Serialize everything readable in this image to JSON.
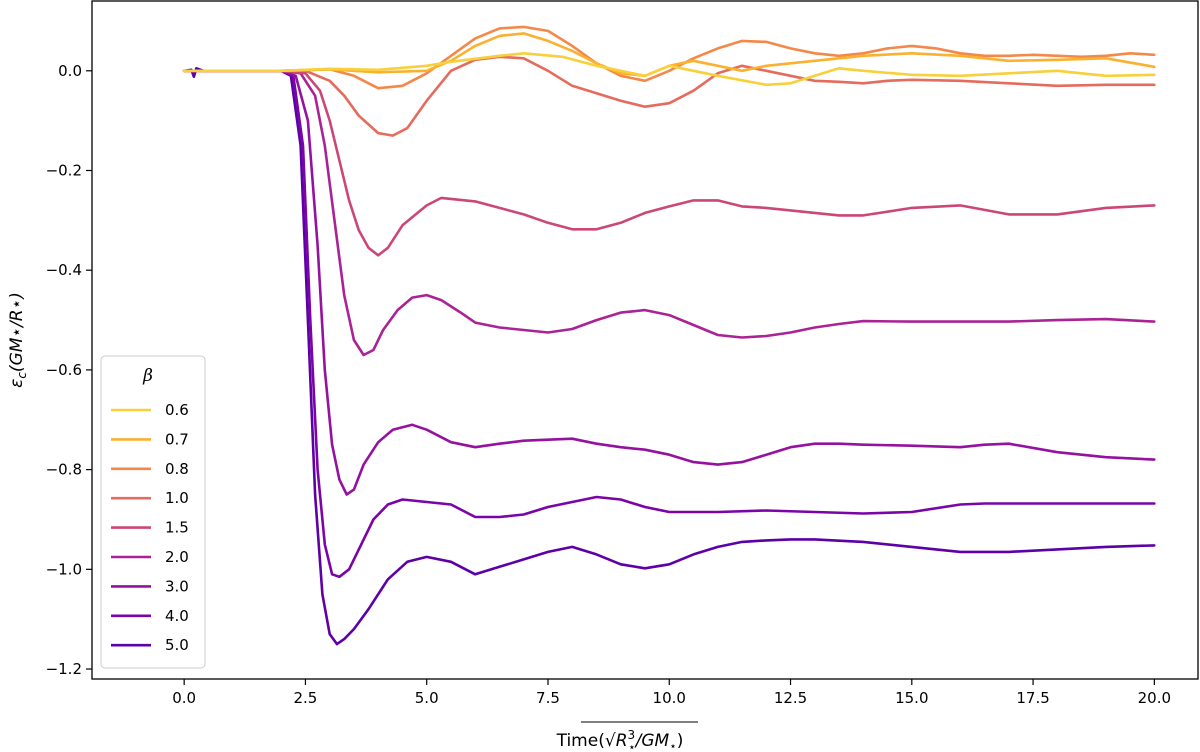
{
  "chart_data": {
    "type": "line",
    "title": "",
    "xlabel": "Time(√R⋆³/GM⋆)",
    "xlabel_parts": {
      "prefix": "Time(",
      "r": "R",
      "star": "⋆",
      "cube": "3",
      "slash": "/GM",
      "close": ")"
    },
    "ylabel": "εc(GM⋆/R⋆)",
    "ylabel_parts": {
      "eps": "ε",
      "sub": "c",
      "rest": "(GM⋆/R⋆)"
    },
    "xlim": [
      -1.9,
      20.9
    ],
    "ylim": [
      -1.22,
      0.14
    ],
    "grid": false,
    "xticks": [
      0.0,
      2.5,
      5.0,
      7.5,
      10.0,
      12.5,
      15.0,
      17.5,
      20.0
    ],
    "xtick_labels": [
      "0.0",
      "2.5",
      "5.0",
      "7.5",
      "10.0",
      "12.5",
      "15.0",
      "17.5",
      "20.0"
    ],
    "yticks": [
      0.0,
      -0.2,
      -0.4,
      -0.6,
      -0.8,
      -1.0,
      -1.2
    ],
    "ytick_labels": [
      "0.0",
      "−0.2",
      "−0.4",
      "−0.6",
      "−0.8",
      "−1.0",
      "−1.2"
    ],
    "legend": {
      "title": "β",
      "position": "lower-left"
    },
    "series": [
      {
        "name": "0.6",
        "color": "#f7d03c",
        "x": [
          0,
          2,
          3,
          4,
          5,
          5.5,
          6.5,
          7,
          7.8,
          8.5,
          9.5,
          10,
          10.5,
          11,
          12,
          12.5,
          13,
          13.5,
          14,
          15,
          16,
          17,
          18,
          19,
          20
        ],
        "y": [
          0,
          0,
          0.004,
          0.002,
          0.01,
          0.018,
          0.03,
          0.035,
          0.028,
          0.01,
          -0.01,
          0.01,
          0.0,
          -0.01,
          -0.028,
          -0.025,
          -0.01,
          0.005,
          0.0,
          -0.008,
          -0.01,
          -0.005,
          0.0,
          -0.01,
          -0.008
        ]
      },
      {
        "name": "0.7",
        "color": "#fbb130",
        "x": [
          0,
          2,
          3,
          4,
          5,
          5.5,
          6,
          6.5,
          7,
          7.5,
          8,
          8.5,
          9,
          9.5,
          10,
          10.5,
          11,
          11.5,
          12,
          12.5,
          13,
          13.5,
          14,
          15,
          16,
          17,
          18,
          19,
          20
        ],
        "y": [
          0,
          0,
          0.003,
          -0.003,
          0.0,
          0.02,
          0.05,
          0.07,
          0.075,
          0.06,
          0.04,
          0.015,
          -0.005,
          -0.01,
          0.01,
          0.02,
          0.01,
          0.0,
          0.01,
          0.015,
          0.02,
          0.025,
          0.03,
          0.035,
          0.03,
          0.02,
          0.022,
          0.025,
          0.008
        ]
      },
      {
        "name": "0.8",
        "color": "#f48849",
        "x": [
          0,
          2,
          3,
          3.5,
          4,
          4.5,
          5,
          5.5,
          6,
          6.5,
          7,
          7.5,
          8,
          8.5,
          9,
          9.5,
          10,
          10.5,
          11,
          11.5,
          12,
          12.5,
          13,
          13.5,
          14,
          14.5,
          15,
          15.5,
          16,
          16.5,
          17,
          17.5,
          18,
          18.5,
          19,
          19.5,
          20
        ],
        "y": [
          0,
          0,
          0.003,
          -0.01,
          -0.035,
          -0.03,
          -0.005,
          0.03,
          0.065,
          0.085,
          0.088,
          0.08,
          0.05,
          0.015,
          -0.01,
          -0.02,
          0.0,
          0.025,
          0.045,
          0.06,
          0.058,
          0.045,
          0.035,
          0.03,
          0.035,
          0.045,
          0.05,
          0.045,
          0.035,
          0.03,
          0.03,
          0.032,
          0.03,
          0.028,
          0.03,
          0.035,
          0.032
        ]
      },
      {
        "name": "1.0",
        "color": "#e56b5d",
        "x": [
          0,
          2,
          2.5,
          3,
          3.3,
          3.6,
          4,
          4.3,
          4.6,
          5,
          5.5,
          6,
          6.5,
          7,
          7.5,
          8,
          8.5,
          9,
          9.5,
          10,
          10.5,
          11,
          11.5,
          12,
          12.5,
          13,
          13.5,
          14,
          14.5,
          15,
          16,
          17,
          18,
          19,
          20
        ],
        "y": [
          0,
          0,
          0.0,
          -0.02,
          -0.05,
          -0.09,
          -0.125,
          -0.13,
          -0.115,
          -0.06,
          0.0,
          0.022,
          0.028,
          0.025,
          0.0,
          -0.03,
          -0.045,
          -0.06,
          -0.072,
          -0.065,
          -0.04,
          -0.005,
          0.01,
          0.0,
          -0.01,
          -0.02,
          -0.022,
          -0.025,
          -0.02,
          -0.018,
          -0.02,
          -0.025,
          -0.03,
          -0.028,
          -0.028
        ]
      },
      {
        "name": "1.5",
        "color": "#cb4778",
        "x": [
          0,
          2,
          2.5,
          2.8,
          3,
          3.2,
          3.4,
          3.6,
          3.8,
          4,
          4.2,
          4.5,
          5,
          5.3,
          5.6,
          6,
          6.5,
          7,
          7.5,
          8,
          8.5,
          9,
          9.5,
          10,
          10.5,
          11,
          11.5,
          12,
          12.5,
          13,
          13.5,
          14,
          15,
          16,
          17,
          18,
          19,
          20
        ],
        "y": [
          0,
          0,
          -0.005,
          -0.04,
          -0.1,
          -0.18,
          -0.26,
          -0.32,
          -0.355,
          -0.37,
          -0.355,
          -0.31,
          -0.27,
          -0.255,
          -0.258,
          -0.262,
          -0.275,
          -0.288,
          -0.305,
          -0.318,
          -0.318,
          -0.305,
          -0.285,
          -0.272,
          -0.26,
          -0.26,
          -0.272,
          -0.275,
          -0.28,
          -0.285,
          -0.29,
          -0.29,
          -0.275,
          -0.27,
          -0.288,
          -0.288,
          -0.275,
          -0.27
        ]
      },
      {
        "name": "2.0",
        "color": "#aa2395",
        "x": [
          0,
          2,
          2.4,
          2.7,
          2.9,
          3.1,
          3.3,
          3.5,
          3.7,
          3.9,
          4.1,
          4.4,
          4.7,
          5,
          5.3,
          5.7,
          6,
          6.5,
          7,
          7.5,
          8,
          8.5,
          9,
          9.5,
          10,
          10.5,
          11,
          11.5,
          12,
          12.5,
          13,
          13.5,
          14,
          15,
          16,
          17,
          18,
          19,
          20
        ],
        "y": [
          0,
          0,
          -0.005,
          -0.05,
          -0.15,
          -0.3,
          -0.45,
          -0.54,
          -0.57,
          -0.56,
          -0.52,
          -0.48,
          -0.455,
          -0.45,
          -0.46,
          -0.485,
          -0.505,
          -0.515,
          -0.52,
          -0.525,
          -0.518,
          -0.5,
          -0.485,
          -0.48,
          -0.49,
          -0.51,
          -0.53,
          -0.535,
          -0.532,
          -0.525,
          -0.515,
          -0.508,
          -0.502,
          -0.503,
          -0.503,
          -0.503,
          -0.5,
          -0.498,
          -0.503
        ]
      },
      {
        "name": "3.0",
        "color": "#9512a0",
        "x": [
          0,
          2,
          2.3,
          2.55,
          2.75,
          2.9,
          3.05,
          3.2,
          3.35,
          3.5,
          3.7,
          4,
          4.3,
          4.7,
          5,
          5.5,
          6,
          6.5,
          7,
          7.5,
          8,
          8.5,
          9,
          9.5,
          10,
          10.5,
          11,
          11.5,
          12,
          12.5,
          13,
          13.5,
          14,
          15,
          16,
          16.5,
          17,
          18,
          19,
          20
        ],
        "y": [
          0,
          0,
          -0.01,
          -0.1,
          -0.35,
          -0.6,
          -0.75,
          -0.82,
          -0.85,
          -0.84,
          -0.79,
          -0.745,
          -0.72,
          -0.71,
          -0.72,
          -0.745,
          -0.755,
          -0.748,
          -0.742,
          -0.74,
          -0.738,
          -0.748,
          -0.755,
          -0.76,
          -0.77,
          -0.785,
          -0.79,
          -0.785,
          -0.77,
          -0.755,
          -0.748,
          -0.748,
          -0.75,
          -0.752,
          -0.755,
          -0.75,
          -0.748,
          -0.765,
          -0.775,
          -0.78
        ]
      },
      {
        "name": "4.0",
        "color": "#7a04a8",
        "x": [
          0,
          2,
          2.25,
          2.45,
          2.6,
          2.75,
          2.9,
          3.05,
          3.2,
          3.4,
          3.6,
          3.9,
          4.2,
          4.5,
          5,
          5.5,
          6,
          6.5,
          7,
          7.5,
          8,
          8.5,
          9,
          9.5,
          10,
          10.5,
          11,
          12,
          13,
          14,
          15,
          16,
          16.5,
          17,
          18,
          19,
          20
        ],
        "y": [
          0,
          0,
          -0.01,
          -0.15,
          -0.5,
          -0.8,
          -0.95,
          -1.01,
          -1.015,
          -1.0,
          -0.96,
          -0.9,
          -0.87,
          -0.86,
          -0.865,
          -0.87,
          -0.895,
          -0.895,
          -0.89,
          -0.875,
          -0.865,
          -0.855,
          -0.86,
          -0.875,
          -0.885,
          -0.885,
          -0.885,
          -0.882,
          -0.885,
          -0.888,
          -0.885,
          -0.87,
          -0.868,
          -0.868,
          -0.868,
          -0.868,
          -0.868
        ]
      },
      {
        "name": "5.0",
        "color": "#5d01a6",
        "x": [
          0,
          0.15,
          0.2,
          0.25,
          0.4,
          2,
          2.2,
          2.4,
          2.55,
          2.7,
          2.85,
          3,
          3.15,
          3.3,
          3.5,
          3.8,
          4.2,
          4.6,
          5,
          5.5,
          6,
          6.5,
          7,
          7.5,
          8,
          8.5,
          9,
          9.5,
          10,
          10.5,
          11,
          11.5,
          12,
          12.5,
          13,
          14,
          15,
          16,
          17,
          18,
          19,
          20
        ],
        "y": [
          0,
          0.002,
          -0.012,
          0.005,
          0.0,
          0.0,
          -0.01,
          -0.15,
          -0.5,
          -0.85,
          -1.05,
          -1.13,
          -1.15,
          -1.14,
          -1.12,
          -1.08,
          -1.02,
          -0.985,
          -0.975,
          -0.985,
          -1.01,
          -0.995,
          -0.98,
          -0.965,
          -0.955,
          -0.97,
          -0.99,
          -0.998,
          -0.99,
          -0.97,
          -0.955,
          -0.945,
          -0.942,
          -0.94,
          -0.94,
          -0.945,
          -0.955,
          -0.965,
          -0.965,
          -0.96,
          -0.955,
          -0.952
        ]
      }
    ]
  }
}
